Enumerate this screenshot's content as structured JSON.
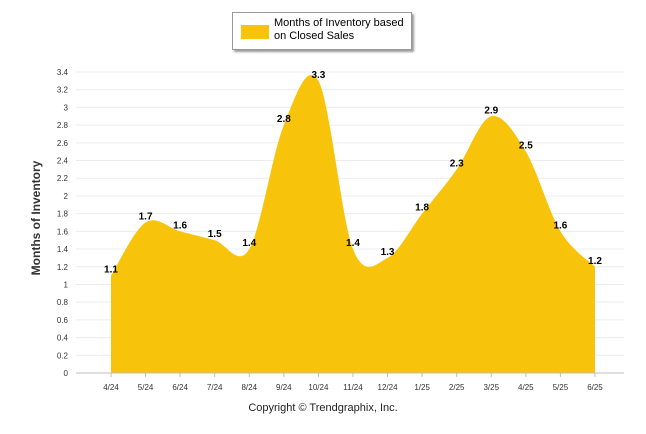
{
  "chart_data": {
    "type": "area",
    "categories": [
      "4/24",
      "5/24",
      "6/24",
      "7/24",
      "8/24",
      "9/24",
      "10/24",
      "11/24",
      "12/24",
      "1/25",
      "2/25",
      "3/25",
      "4/25",
      "5/25",
      "6/25"
    ],
    "series": [
      {
        "name": "Months of Inventory based on Closed Sales",
        "values": [
          1.1,
          1.7,
          1.6,
          1.5,
          1.4,
          2.8,
          3.3,
          1.4,
          1.3,
          1.8,
          2.3,
          2.9,
          2.5,
          1.6,
          1.2
        ],
        "labels": [
          "1.1",
          "1.7",
          "1.6",
          "1.5",
          "1.4",
          "2.8",
          "3.3",
          "1.4",
          "1.3",
          "1.8",
          "2.3",
          "2.9",
          "2.5",
          "1.6",
          "1.2"
        ],
        "color": "#F8C30B"
      }
    ],
    "ylabel": "Months of Inventory",
    "xlabel": "",
    "ylim": [
      0,
      3.4
    ],
    "yticks": [
      "0",
      "0.2",
      "0.4",
      "0.6",
      "0.8",
      "1",
      "1.2",
      "1.4",
      "1.6",
      "1.8",
      "2",
      "2.2",
      "2.4",
      "2.6",
      "2.8",
      "3",
      "3.2",
      "3.4"
    ],
    "grid": true,
    "legend": "top-center"
  },
  "legend": {
    "label_line1": "Months of Inventory based",
    "label_line2": "on Closed Sales"
  },
  "footer": "Copyright © Trendgraphix, Inc."
}
